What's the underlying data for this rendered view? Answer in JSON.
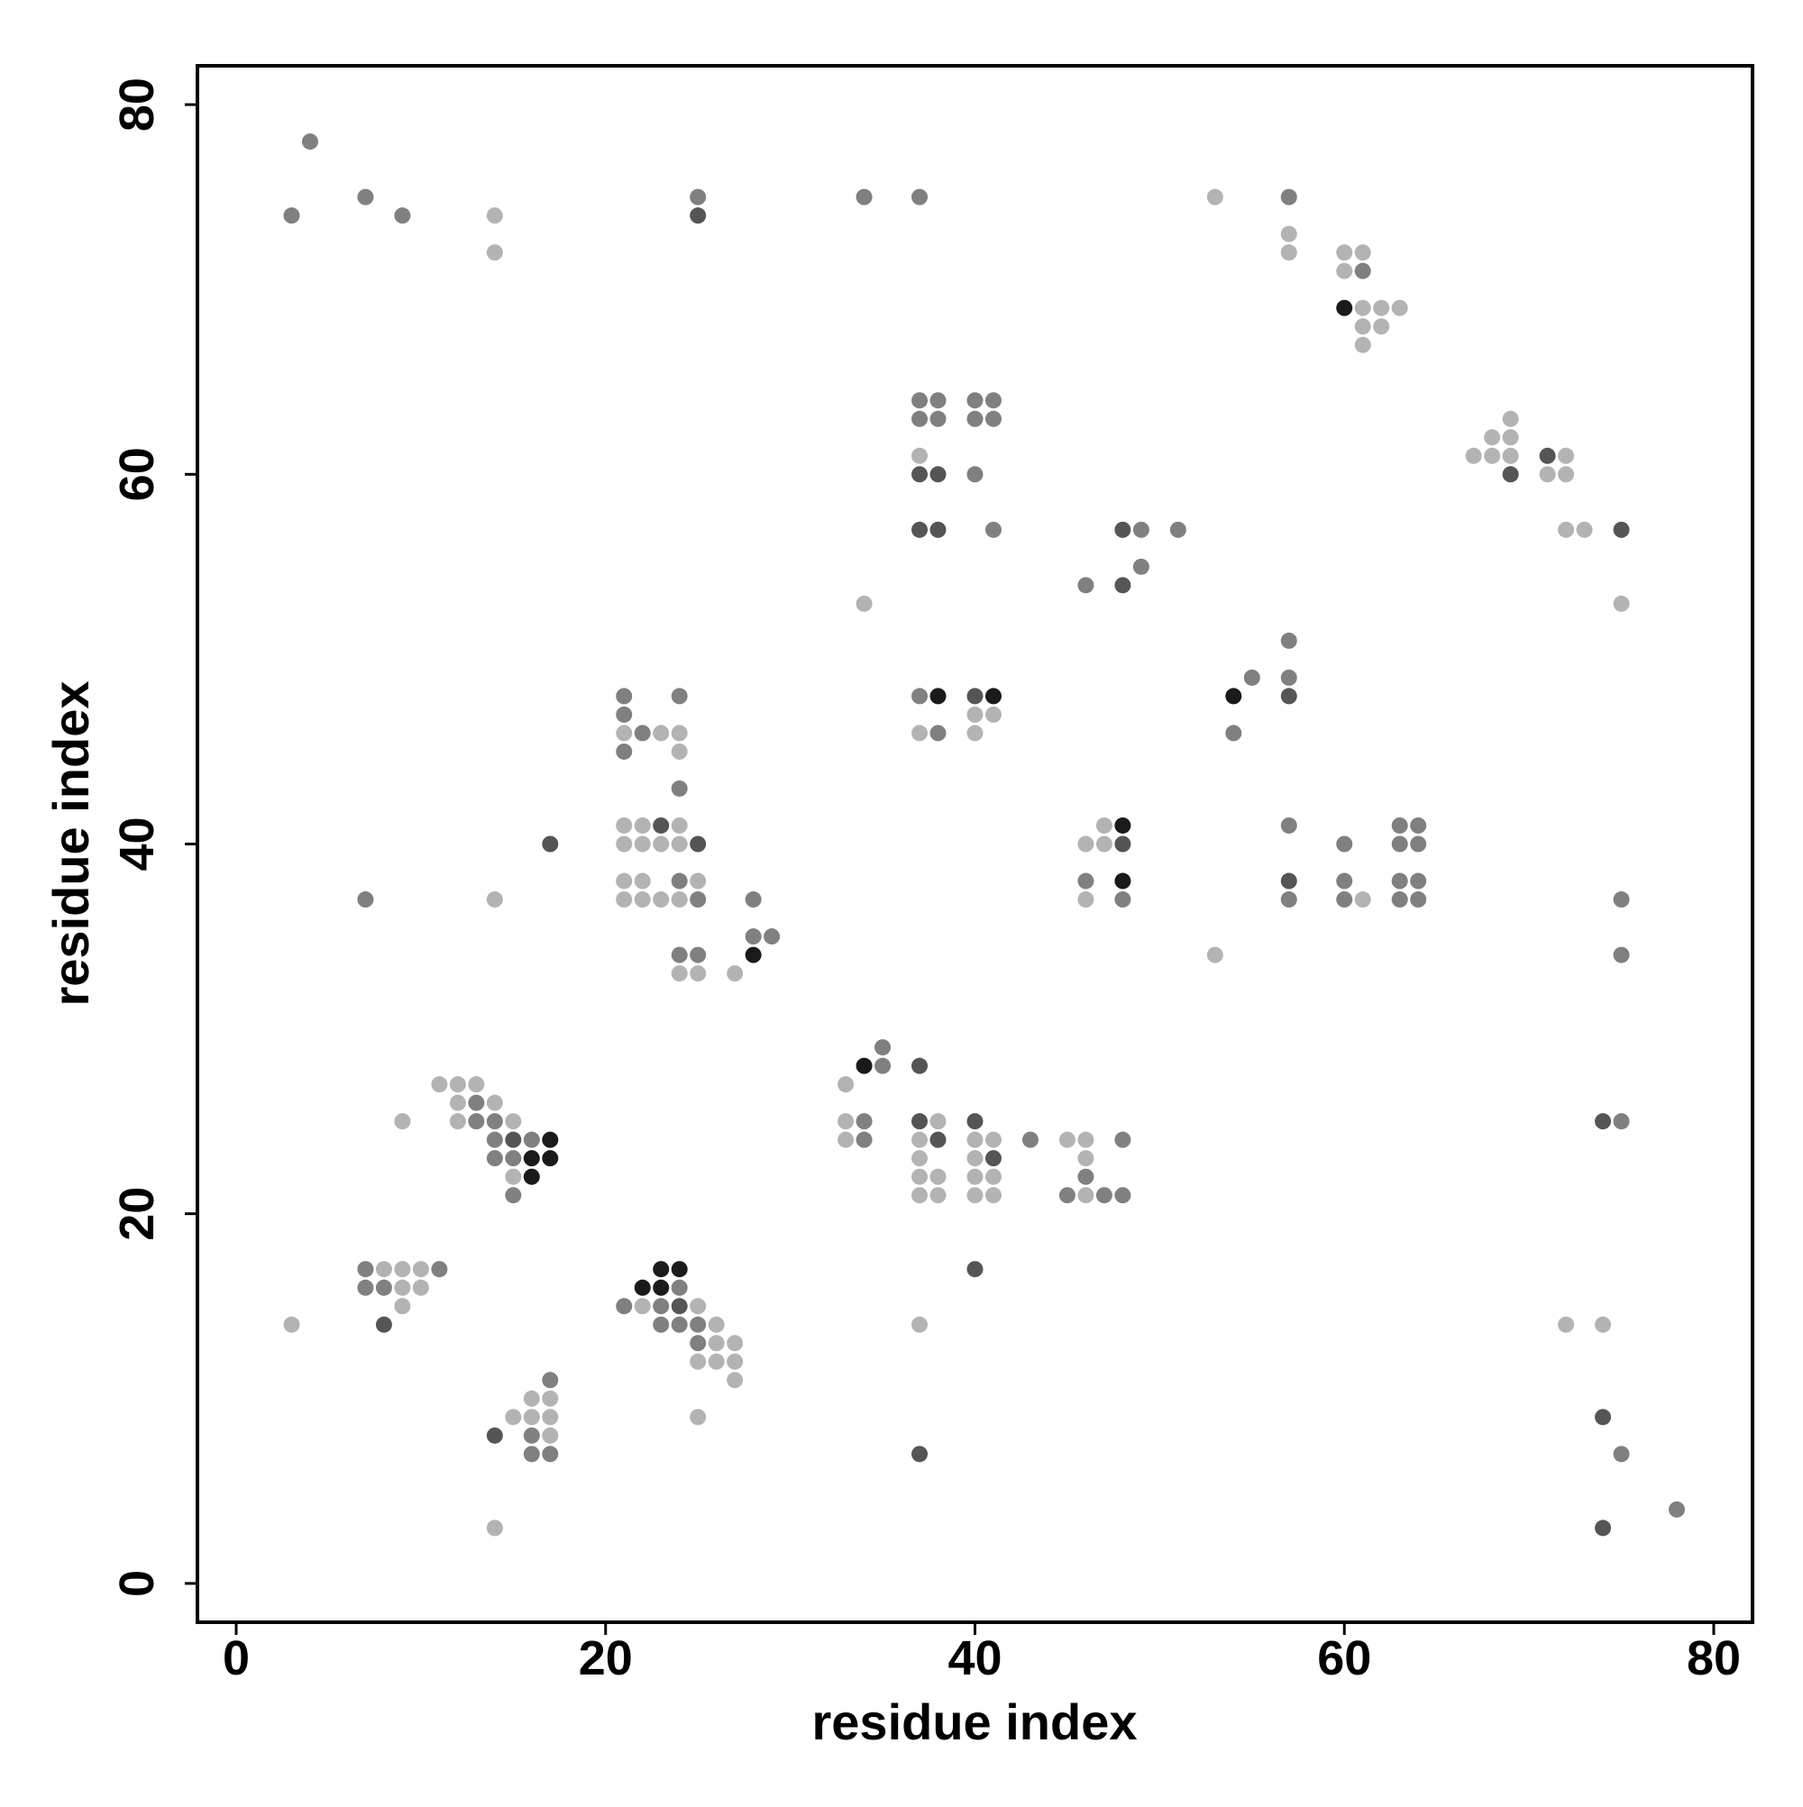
{
  "chart_data": {
    "type": "scatter",
    "x_label": "residue index",
    "y_label": "residue index",
    "xlim": [
      -2.1,
      82.1
    ],
    "ylim": [
      -2.1,
      82.1
    ],
    "xticks": [
      0,
      20,
      40,
      60,
      80
    ],
    "yticks": [
      0,
      20,
      40,
      60,
      80
    ],
    "grid": false,
    "series": [
      {
        "color": "#b3b3b3",
        "x": [
          14,
          14,
          53,
          57,
          57,
          60,
          61,
          60,
          61,
          62,
          63,
          61,
          62,
          61,
          69,
          37,
          68,
          69,
          67,
          68,
          69,
          72,
          71,
          72,
          72,
          73,
          34,
          75,
          40,
          41,
          21,
          23,
          24,
          37,
          40,
          24,
          21,
          22,
          24,
          47,
          21,
          22,
          23,
          24,
          46,
          47,
          21,
          22,
          25,
          14,
          21,
          22,
          23,
          24,
          46,
          61,
          53,
          24,
          25,
          27,
          11,
          12,
          13,
          33,
          12,
          14,
          9,
          12,
          15,
          33,
          38,
          33,
          37,
          40,
          41,
          45,
          46,
          37,
          40,
          46,
          15,
          37,
          38,
          40,
          41,
          37,
          38,
          40,
          41,
          46,
          8,
          9,
          10,
          9,
          10,
          9,
          22,
          25,
          3,
          26,
          37,
          72,
          74,
          26,
          27,
          25,
          26,
          27,
          27,
          16,
          17,
          15,
          16,
          17,
          25,
          17,
          14
        ],
        "y": [
          74,
          72,
          75,
          73,
          72,
          72,
          72,
          71,
          69,
          69,
          69,
          68,
          68,
          67,
          63,
          61,
          62,
          62,
          61,
          61,
          61,
          61,
          60,
          60,
          57,
          57,
          53,
          53,
          47,
          47,
          46,
          46,
          46,
          46,
          46,
          45,
          41,
          41,
          41,
          41,
          40,
          40,
          40,
          40,
          40,
          40,
          38,
          38,
          38,
          37,
          37,
          37,
          37,
          37,
          37,
          37,
          34,
          33,
          33,
          33,
          27,
          27,
          27,
          27,
          26,
          26,
          25,
          25,
          25,
          25,
          25,
          24,
          24,
          24,
          24,
          24,
          24,
          23,
          23,
          23,
          22,
          22,
          22,
          22,
          22,
          21,
          21,
          21,
          21,
          21,
          17,
          17,
          17,
          16,
          16,
          15,
          15,
          15,
          14,
          14,
          14,
          14,
          14,
          13,
          13,
          12,
          12,
          12,
          11,
          10,
          10,
          9,
          9,
          9,
          9,
          8,
          3
        ]
      },
      {
        "color": "#808080",
        "x": [
          4,
          3,
          7,
          9,
          25,
          34,
          37,
          57,
          61,
          37,
          38,
          40,
          41,
          37,
          38,
          40,
          41,
          40,
          41,
          49,
          51,
          49,
          46,
          57,
          55,
          57,
          21,
          24,
          37,
          21,
          22,
          38,
          54,
          21,
          24,
          57,
          63,
          64,
          60,
          63,
          64,
          24,
          46,
          60,
          63,
          64,
          7,
          25,
          28,
          48,
          57,
          60,
          63,
          64,
          75,
          28,
          29,
          24,
          25,
          75,
          35,
          35,
          13,
          13,
          14,
          34,
          75,
          14,
          16,
          34,
          43,
          48,
          14,
          15,
          46,
          15,
          45,
          47,
          48,
          7,
          11,
          7,
          8,
          24,
          21,
          23,
          23,
          24,
          25,
          25,
          17,
          16,
          16,
          17,
          75,
          78
        ],
        "y": [
          78,
          74,
          75,
          74,
          75,
          75,
          75,
          75,
          71,
          64,
          64,
          64,
          64,
          63,
          63,
          63,
          63,
          60,
          57,
          57,
          57,
          55,
          54,
          51,
          49,
          49,
          48,
          48,
          48,
          47,
          46,
          46,
          46,
          45,
          43,
          41,
          41,
          41,
          40,
          40,
          40,
          38,
          38,
          38,
          38,
          38,
          37,
          37,
          37,
          37,
          37,
          37,
          37,
          37,
          37,
          35,
          35,
          34,
          34,
          34,
          29,
          28,
          26,
          25,
          25,
          25,
          25,
          24,
          24,
          24,
          24,
          24,
          23,
          23,
          22,
          21,
          21,
          21,
          21,
          17,
          17,
          16,
          16,
          16,
          15,
          15,
          14,
          14,
          14,
          13,
          11,
          8,
          7,
          7,
          7,
          4
        ]
      },
      {
        "color": "#555555",
        "x": [
          25,
          71,
          37,
          38,
          69,
          37,
          38,
          48,
          75,
          48,
          40,
          57,
          23,
          17,
          25,
          48,
          57,
          37,
          37,
          40,
          74,
          15,
          38,
          41,
          40,
          24,
          8,
          74,
          14,
          37,
          74
        ],
        "y": [
          74,
          61,
          60,
          60,
          60,
          57,
          57,
          57,
          57,
          54,
          48,
          48,
          41,
          40,
          40,
          40,
          38,
          28,
          25,
          25,
          25,
          24,
          24,
          23,
          17,
          15,
          14,
          9,
          8,
          7,
          3
        ]
      },
      {
        "color": "#1a1a1a",
        "x": [
          60,
          38,
          41,
          54,
          48,
          48,
          28,
          34,
          17,
          16,
          17,
          16,
          23,
          24,
          22,
          23
        ],
        "y": [
          69,
          48,
          48,
          48,
          41,
          38,
          34,
          28,
          24,
          23,
          23,
          22,
          17,
          17,
          16,
          16
        ]
      }
    ]
  }
}
